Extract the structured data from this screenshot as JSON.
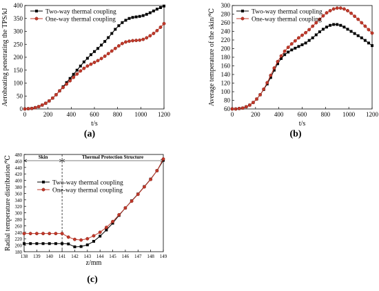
{
  "chart_data": [
    {
      "type": "line",
      "panel_label": "(a)",
      "xlabel": "t/s",
      "ylabel": "Aeroheating penetrating the TPS/kJ",
      "xlim": [
        0,
        1200
      ],
      "ylim": [
        0,
        400
      ],
      "xticks": [
        0,
        200,
        400,
        600,
        800,
        1000,
        1200
      ],
      "yticks": [
        0,
        50,
        100,
        150,
        200,
        250,
        300,
        350,
        400
      ],
      "legend_position": "top-left",
      "series": [
        {
          "name": "Two-way thermal coupling",
          "color": "#000000",
          "marker": "square",
          "x": [
            0,
            30,
            60,
            90,
            120,
            150,
            180,
            210,
            240,
            270,
            300,
            330,
            360,
            390,
            420,
            450,
            480,
            510,
            540,
            570,
            600,
            630,
            660,
            690,
            720,
            750,
            780,
            810,
            840,
            870,
            900,
            930,
            960,
            990,
            1020,
            1050,
            1080,
            1110,
            1140,
            1170,
            1200
          ],
          "y": [
            0,
            1,
            2,
            5,
            9,
            15,
            22,
            31,
            42,
            55,
            70,
            86,
            102,
            118,
            134,
            150,
            166,
            182,
            196,
            210,
            222,
            234,
            247,
            261,
            276,
            292,
            308,
            322,
            334,
            343,
            350,
            354,
            356,
            358,
            361,
            366,
            372,
            379,
            386,
            392,
            398
          ]
        },
        {
          "name": "One-way thermal coupling",
          "color": "#c0392b",
          "marker": "circle",
          "x": [
            0,
            30,
            60,
            90,
            120,
            150,
            180,
            210,
            240,
            270,
            300,
            330,
            360,
            390,
            420,
            450,
            480,
            510,
            540,
            570,
            600,
            630,
            660,
            690,
            720,
            750,
            780,
            810,
            840,
            870,
            900,
            930,
            960,
            990,
            1020,
            1050,
            1080,
            1110,
            1140,
            1170,
            1200
          ],
          "y": [
            0,
            1,
            2,
            5,
            9,
            15,
            22,
            31,
            42,
            55,
            70,
            83,
            96,
            109,
            122,
            135,
            147,
            157,
            166,
            173,
            180,
            187,
            195,
            204,
            214,
            224,
            234,
            244,
            253,
            259,
            262,
            264,
            265,
            266,
            269,
            275,
            283,
            292,
            303,
            316,
            330
          ]
        }
      ]
    },
    {
      "type": "line",
      "panel_label": "(b)",
      "xlabel": "t/s",
      "ylabel": "Average temperature of the skin/℃",
      "xlim": [
        0,
        1200
      ],
      "ylim": [
        60,
        300
      ],
      "xticks": [
        0,
        200,
        400,
        600,
        800,
        1000,
        1200
      ],
      "yticks": [
        60,
        80,
        100,
        120,
        140,
        160,
        180,
        200,
        220,
        240,
        260,
        280,
        300
      ],
      "legend_position": "top-left",
      "series": [
        {
          "name": "Two-way thermal coupling",
          "color": "#000000",
          "marker": "square",
          "x": [
            0,
            30,
            60,
            90,
            120,
            150,
            180,
            210,
            240,
            270,
            300,
            330,
            360,
            390,
            420,
            450,
            480,
            510,
            540,
            570,
            600,
            630,
            660,
            690,
            720,
            750,
            780,
            810,
            840,
            870,
            900,
            930,
            960,
            990,
            1020,
            1050,
            1080,
            1110,
            1140,
            1170,
            1200
          ],
          "y": [
            60,
            60,
            61,
            62,
            65,
            69,
            75,
            83,
            93,
            105,
            118,
            133,
            150,
            165,
            177,
            186,
            192,
            197,
            201,
            205,
            209,
            213,
            219,
            225,
            232,
            239,
            245,
            250,
            254,
            256,
            256,
            254,
            250,
            245,
            240,
            235,
            230,
            225,
            219,
            213,
            207
          ]
        },
        {
          "name": "One-way thermal coupling",
          "color": "#c0392b",
          "marker": "circle",
          "x": [
            0,
            30,
            60,
            90,
            120,
            150,
            180,
            210,
            240,
            270,
            300,
            330,
            360,
            390,
            420,
            450,
            480,
            510,
            540,
            570,
            600,
            630,
            660,
            690,
            720,
            750,
            780,
            810,
            840,
            870,
            900,
            930,
            960,
            990,
            1020,
            1050,
            1080,
            1110,
            1140,
            1170,
            1200
          ],
          "y": [
            60,
            60,
            61,
            62,
            65,
            69,
            75,
            83,
            93,
            106,
            121,
            138,
            155,
            170,
            183,
            194,
            203,
            211,
            218,
            225,
            231,
            237,
            244,
            252,
            260,
            268,
            276,
            283,
            288,
            292,
            294,
            294,
            292,
            288,
            282,
            275,
            268,
            260,
            252,
            244,
            236
          ]
        }
      ]
    },
    {
      "type": "line",
      "panel_label": "(c)",
      "xlabel": "z/mm",
      "ylabel": "Radial temperature distribution/℃",
      "xlim": [
        138,
        149
      ],
      "ylim": [
        180,
        480
      ],
      "xticks": [
        138,
        139,
        140,
        141,
        142,
        143,
        144,
        145,
        146,
        147,
        148,
        149
      ],
      "yticks": [
        180,
        200,
        220,
        240,
        260,
        280,
        300,
        320,
        340,
        360,
        380,
        400,
        420,
        440,
        460,
        480
      ],
      "legend_position": "top-left",
      "regions": [
        {
          "label": "Skin",
          "from": 138,
          "to": 141
        },
        {
          "label": "Thermal Protection Structure",
          "from": 141,
          "to": 149
        }
      ],
      "divider_x": 141,
      "series": [
        {
          "name": "Two-way thermal coupling",
          "color": "#000000",
          "marker": "square",
          "x": [
            138,
            138.5,
            139,
            139.5,
            140,
            140.5,
            141,
            141.5,
            142,
            142.5,
            143,
            143.5,
            144,
            144.5,
            145,
            145.5,
            146,
            146.5,
            147,
            147.5,
            148,
            148.5,
            149
          ],
          "y": [
            205,
            205,
            205,
            205,
            205,
            205,
            205,
            204,
            195,
            196,
            201,
            212,
            228,
            247,
            268,
            292,
            315,
            337,
            358,
            381,
            404,
            430,
            462
          ]
        },
        {
          "name": "One-way thermal coupling",
          "color": "#c0392b",
          "marker": "circle",
          "x": [
            138,
            138.5,
            139,
            139.5,
            140,
            140.5,
            141,
            141.5,
            142,
            142.5,
            143,
            143.5,
            144,
            144.5,
            145,
            145.5,
            146,
            146.5,
            147,
            147.5,
            148,
            148.5,
            149
          ],
          "y": [
            236,
            236,
            236,
            236,
            236,
            236,
            236,
            225,
            218,
            216,
            220,
            229,
            240,
            255,
            273,
            294,
            315,
            336,
            357,
            380,
            403,
            430,
            466
          ]
        }
      ]
    }
  ]
}
